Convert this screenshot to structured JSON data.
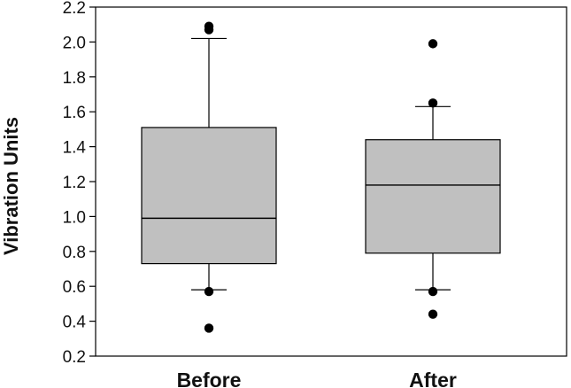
{
  "chart_data": {
    "type": "box",
    "ylabel": "Vibration Units",
    "xlabel": "",
    "ylim": [
      0.2,
      2.2
    ],
    "yticks": [
      0.2,
      0.4,
      0.6,
      0.8,
      1.0,
      1.2,
      1.4,
      1.6,
      1.8,
      2.0,
      2.2
    ],
    "ytick_labels": [
      "0.2",
      "0.4",
      "0.6",
      "0.8",
      "1.0",
      "1.2",
      "1.4",
      "1.6",
      "1.8",
      "2.0",
      "2.2"
    ],
    "grid": false,
    "box_color": "#c0c0c0",
    "categories": [
      "Before",
      "After"
    ],
    "boxes": [
      {
        "category": "Before",
        "whisker_low": 0.58,
        "q1": 0.73,
        "median": 0.99,
        "q3": 1.51,
        "whisker_high": 2.02,
        "outliers": [
          0.36,
          0.57,
          2.07,
          2.09
        ]
      },
      {
        "category": "After",
        "whisker_low": 0.58,
        "q1": 0.79,
        "median": 1.18,
        "q3": 1.44,
        "whisker_high": 1.63,
        "outliers": [
          0.44,
          0.57,
          1.65,
          1.99
        ]
      }
    ]
  }
}
